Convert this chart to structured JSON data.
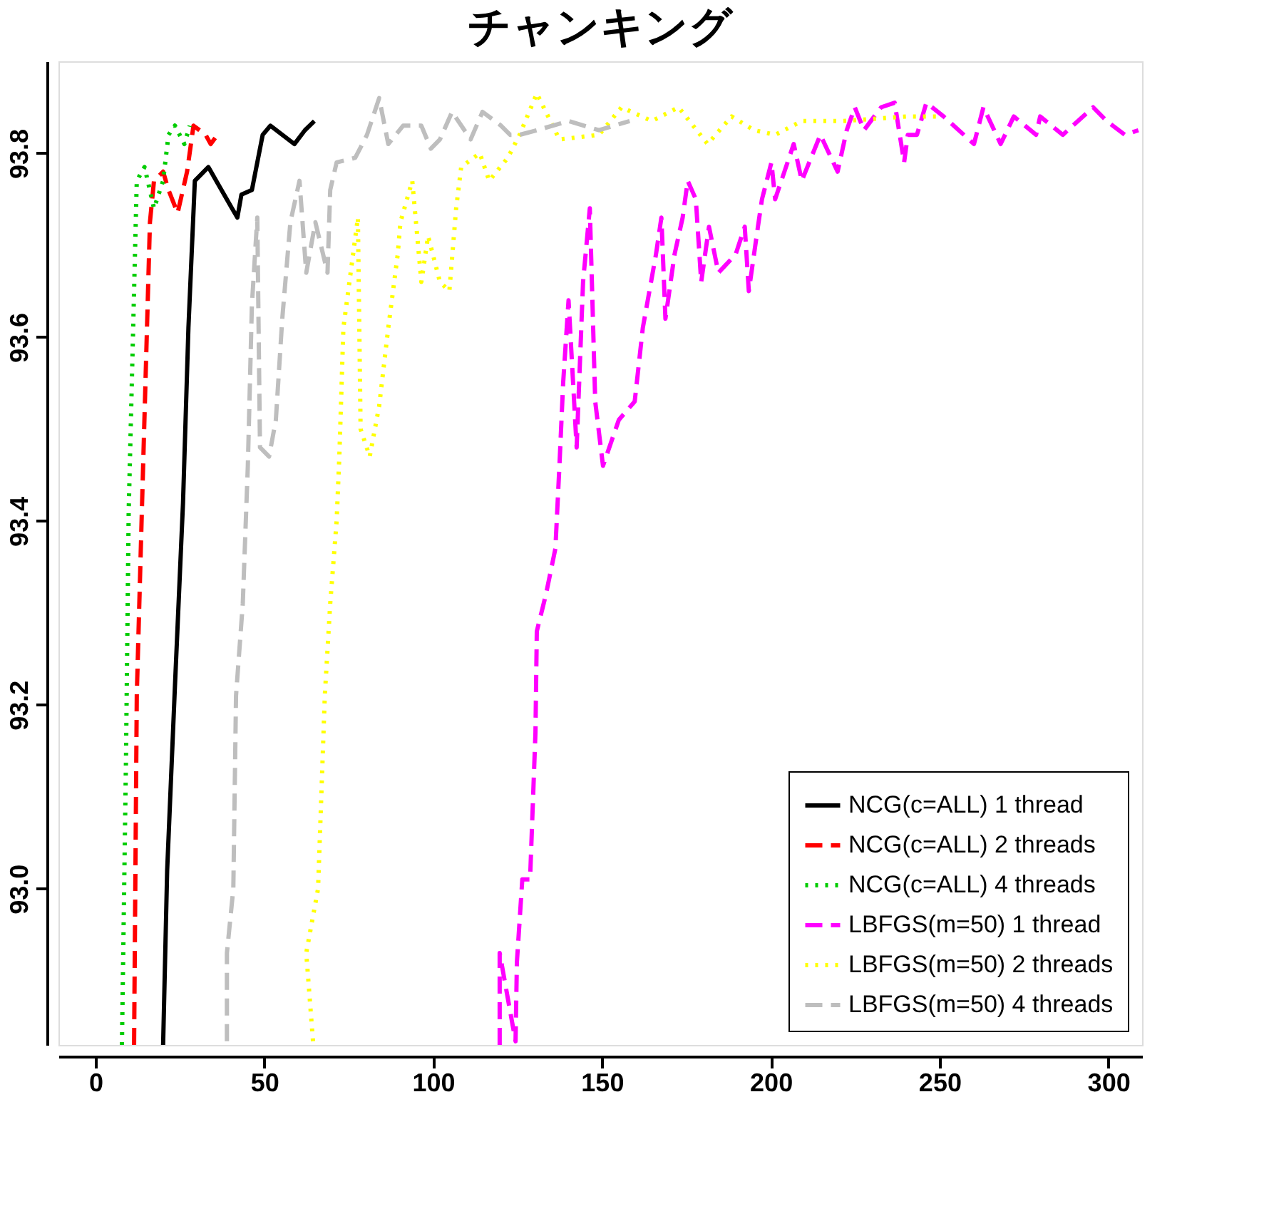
{
  "chart_data": {
    "type": "line",
    "title": "チャンキング",
    "xlim": [
      -11,
      310
    ],
    "xticks": [
      0,
      50,
      100,
      150,
      200,
      250,
      300
    ],
    "ylim": [
      92.83,
      93.9
    ],
    "yticks": [
      {
        "value": 93.0,
        "label": "93.0"
      },
      93.2,
      93.4,
      93.6,
      93.8
    ],
    "grid": false,
    "legend": "bottom right",
    "series": [
      {
        "name": "NCG(c=ALL) 1 thread",
        "color": "#000000",
        "line_style": "solid",
        "x": [
          20.0,
          21.2,
          23.5,
          25.9,
          27.5,
          29.4,
          33.4,
          40.4,
          42.0,
          43.2,
          46.3,
          49.5,
          51.8,
          58.9,
          62.0,
          64.8
        ],
        "values": [
          92.83,
          93.02,
          93.22,
          93.42,
          93.61,
          93.77,
          93.785,
          93.74,
          93.73,
          93.755,
          93.76,
          93.82,
          93.83,
          93.81,
          93.825,
          93.835
        ]
      },
      {
        "name": "NCG(c=ALL) 2 threads",
        "color": "#ff0000",
        "line_style": "dashed",
        "x": [
          11.4,
          12.2,
          13.7,
          16.1,
          17.3,
          20.0,
          21.6,
          24.3,
          27.1,
          29.0,
          32.6,
          34.1,
          36.1
        ],
        "values": [
          92.83,
          93.21,
          93.41,
          93.725,
          93.77,
          93.78,
          93.76,
          93.735,
          93.78,
          93.83,
          93.82,
          93.81,
          93.82
        ]
      },
      {
        "name": "NCG(c=ALL) 4 threads",
        "color": "#00cc00",
        "line_style": "dotted",
        "x": [
          7.8,
          9.0,
          9.8,
          11.4,
          12.2,
          14.5,
          17.3,
          20.0,
          21.6,
          23.5,
          26.3,
          27.9
        ],
        "values": [
          92.83,
          93.14,
          93.41,
          93.65,
          93.77,
          93.785,
          93.74,
          93.77,
          93.82,
          93.83,
          93.81,
          93.83
        ]
      },
      {
        "name": "LBFGS(m=50) 1 thread",
        "color": "#ff00ff",
        "line_style": "dashed",
        "x": [
          119.7,
          119.7,
          124.4,
          124.8,
          126.4,
          128.7,
          130.3,
          130.7,
          133.4,
          136.2,
          137.4,
          138.5,
          140.1,
          142.5,
          144.4,
          146.4,
          148.0,
          150.3,
          155.0,
          159.7,
          162.1,
          166.0,
          167.6,
          168.8,
          171.5,
          173.9,
          175.4,
          177.8,
          179.4,
          181.7,
          184.5,
          189.6,
          192.3,
          193.5,
          196.2,
          197.4,
          200.2,
          201.3,
          206.8,
          209.2,
          214.7,
          219.8,
          222.5,
          224.9,
          227.6,
          232.7,
          236.7,
          239.5,
          240.6,
          243.3,
          246.1,
          251.2,
          260.2,
          263.0,
          268.1,
          272.0,
          278.6,
          279.8,
          286.5,
          295.5,
          299.5,
          304.9,
          308.9
        ],
        "values": [
          92.83,
          92.93,
          92.834,
          92.92,
          93.01,
          93.01,
          93.17,
          93.28,
          93.32,
          93.37,
          93.46,
          93.55,
          93.64,
          93.48,
          93.66,
          93.74,
          93.53,
          93.46,
          93.51,
          93.53,
          93.61,
          93.69,
          93.73,
          93.62,
          93.69,
          93.73,
          93.77,
          93.75,
          93.66,
          93.72,
          93.67,
          93.69,
          93.72,
          93.65,
          93.72,
          93.75,
          93.79,
          93.75,
          93.81,
          93.77,
          93.82,
          93.78,
          93.825,
          93.85,
          93.825,
          93.85,
          93.855,
          93.79,
          93.82,
          93.82,
          93.855,
          93.84,
          93.81,
          93.85,
          93.81,
          93.84,
          93.82,
          93.84,
          93.82,
          93.85,
          93.835,
          93.82,
          93.825
        ]
      },
      {
        "name": "LBFGS(m=50) 2 threads",
        "color": "#ffff00",
        "line_style": "dotted",
        "x": [
          64.4,
          62.4,
          65.9,
          67.9,
          69.5,
          71.4,
          72.2,
          73.4,
          77.7,
          78.5,
          81.2,
          84.0,
          86.7,
          89.5,
          90.3,
          93.8,
          96.5,
          98.5,
          102.0,
          104.8,
          106.8,
          108.3,
          113.8,
          116.6,
          122.1,
          125.6,
          130.7,
          137.4,
          149.1,
          155.8,
          164.8,
          172.7,
          181.3,
          188.4,
          195.1,
          201.3,
          209.2,
          221.0,
          240.6,
          250.0
        ],
        "values": [
          92.834,
          92.93,
          93.0,
          93.21,
          93.31,
          93.4,
          93.47,
          93.61,
          93.73,
          93.5,
          93.47,
          93.525,
          93.61,
          93.69,
          93.725,
          93.77,
          93.66,
          93.71,
          93.66,
          93.65,
          93.74,
          93.785,
          93.8,
          93.77,
          93.795,
          93.82,
          93.865,
          93.815,
          93.82,
          93.85,
          93.835,
          93.85,
          93.81,
          93.84,
          93.825,
          93.82,
          93.835,
          93.835,
          93.84,
          93.84
        ]
      },
      {
        "name": "LBFGS(m=50) 4 threads",
        "color": "#bebebe",
        "line_style": "dashed",
        "x": [
          38.9,
          38.9,
          40.8,
          41.6,
          43.6,
          45.1,
          46.3,
          47.9,
          48.7,
          51.4,
          53.4,
          55.3,
          57.7,
          60.4,
          62.4,
          65.1,
          68.7,
          69.5,
          71.4,
          76.9,
          80.4,
          84.0,
          86.7,
          91.1,
          96.5,
          99.3,
          102.0,
          105.6,
          111.1,
          114.6,
          120.1,
          122.8,
          125.6,
          130.7,
          140.1,
          149.1,
          158.2
        ],
        "values": [
          92.834,
          92.93,
          93.0,
          93.21,
          93.31,
          93.46,
          93.635,
          93.73,
          93.48,
          93.47,
          93.51,
          93.62,
          93.725,
          93.77,
          93.67,
          93.725,
          93.67,
          93.76,
          93.79,
          93.795,
          93.82,
          93.86,
          93.81,
          93.83,
          93.83,
          93.805,
          93.815,
          93.845,
          93.815,
          93.845,
          93.83,
          93.82,
          93.82,
          93.825,
          93.835,
          93.825,
          93.835
        ]
      }
    ]
  }
}
